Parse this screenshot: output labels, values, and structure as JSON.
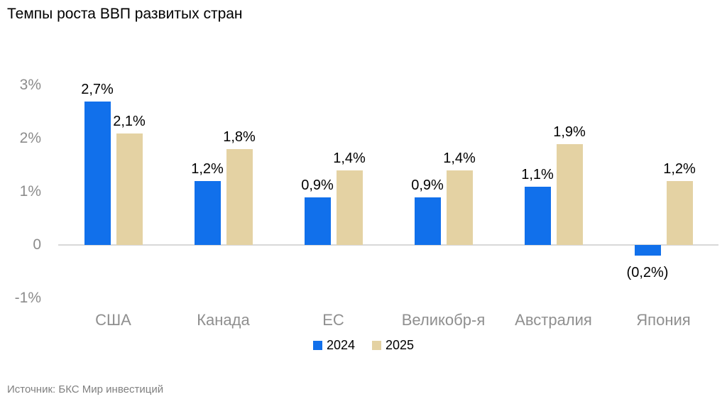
{
  "title": "Темпы роста ВВП развитых стран",
  "source": "Источник: БКС Мир инвестиций",
  "colors": {
    "series_2024": "#1170eb",
    "series_2025": "#e4d2a3",
    "axis_line": "#d9d9d9",
    "tick_text": "#8c8c8c",
    "label_text": "#000000"
  },
  "chart_data": {
    "type": "bar",
    "title": "Темпы роста ВВП развитых стран",
    "categories": [
      "США",
      "Канада",
      "ЕС",
      "Великобр-я",
      "Австралия",
      "Япония"
    ],
    "series": [
      {
        "name": "2024",
        "color": "#1170eb",
        "values": [
          2.7,
          1.2,
          0.9,
          0.9,
          1.1,
          -0.2
        ],
        "labels": [
          "2,7%",
          "1,2%",
          "0,9%",
          "0,9%",
          "1,1%",
          "(0,2%)"
        ]
      },
      {
        "name": "2025",
        "color": "#e4d2a3",
        "values": [
          2.1,
          1.8,
          1.4,
          1.4,
          1.9,
          1.2
        ],
        "labels": [
          "2,1%",
          "1,8%",
          "1,4%",
          "1,4%",
          "1,9%",
          "1,2%"
        ]
      }
    ],
    "xlabel": "",
    "ylabel": "",
    "ylim": [
      -1,
      3
    ],
    "y_ticks": [
      {
        "label": "3%",
        "value": 3
      },
      {
        "label": "2%",
        "value": 2
      },
      {
        "label": "1%",
        "value": 1
      },
      {
        "label": "0",
        "value": 0
      },
      {
        "label": "-1%",
        "value": -1
      }
    ],
    "grid": false,
    "legend_position": "bottom"
  }
}
